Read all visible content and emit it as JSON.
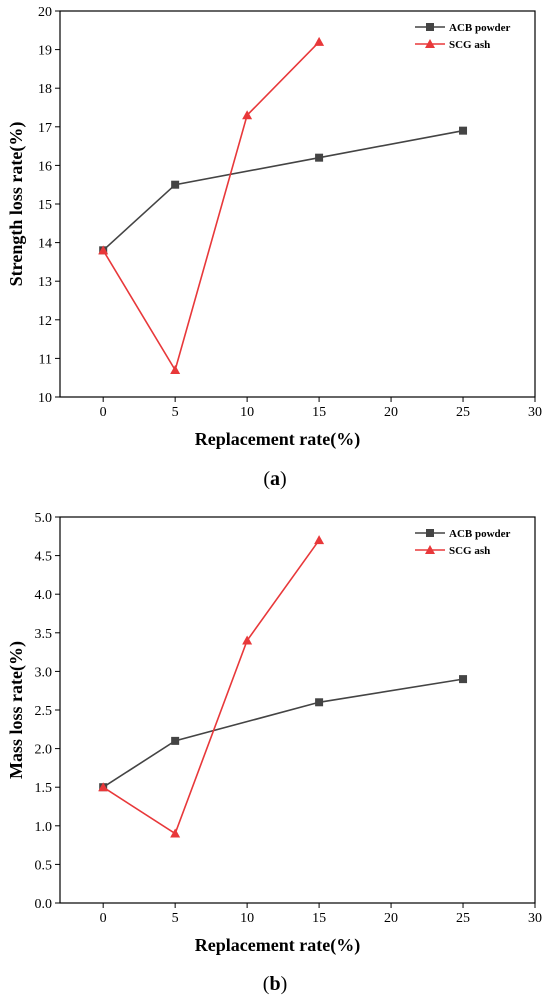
{
  "chart_data": [
    {
      "type": "line",
      "caption_letter": "a",
      "xlabel": "Replacement rate(%)",
      "ylabel": "Strength loss rate(%)",
      "xlim": [
        -3,
        30
      ],
      "ylim": [
        10,
        20
      ],
      "xticks": [
        0,
        5,
        10,
        15,
        20,
        25,
        30
      ],
      "yticks": [
        10,
        11,
        12,
        13,
        14,
        15,
        16,
        17,
        18,
        19,
        20
      ],
      "ytick_labels": [
        "10",
        "11",
        "12",
        "13",
        "14",
        "15",
        "16",
        "17",
        "18",
        "19",
        "20"
      ],
      "legend_position": "top-right",
      "series": [
        {
          "name": "ACB powder",
          "color": "#444444",
          "marker": "square",
          "x": [
            0,
            5,
            15,
            25
          ],
          "y": [
            13.8,
            15.5,
            16.2,
            16.9
          ]
        },
        {
          "name": "SCG ash",
          "color": "#e8383a",
          "marker": "triangle",
          "x": [
            0,
            5,
            10,
            15
          ],
          "y": [
            13.8,
            10.7,
            17.3,
            19.2
          ]
        }
      ]
    },
    {
      "type": "line",
      "caption_letter": "b",
      "xlabel": "Replacement rate(%)",
      "ylabel": "Mass loss rate(%)",
      "xlim": [
        -3,
        30
      ],
      "ylim": [
        0,
        5
      ],
      "xticks": [
        0,
        5,
        10,
        15,
        20,
        25,
        30
      ],
      "yticks": [
        0,
        0.5,
        1,
        1.5,
        2,
        2.5,
        3,
        3.5,
        4,
        4.5,
        5
      ],
      "ytick_labels": [
        "0.0",
        "0.5",
        "1.0",
        "1.5",
        "2.0",
        "2.5",
        "3.0",
        "3.5",
        "4.0",
        "4.5",
        "5.0"
      ],
      "legend_position": "top-right",
      "series": [
        {
          "name": "ACB powder",
          "color": "#444444",
          "marker": "square",
          "x": [
            0,
            5,
            15,
            25
          ],
          "y": [
            1.5,
            2.1,
            2.6,
            2.9
          ]
        },
        {
          "name": "SCG ash",
          "color": "#e8383a",
          "marker": "triangle",
          "x": [
            0,
            5,
            10,
            15
          ],
          "y": [
            1.5,
            0.9,
            3.4,
            4.7
          ]
        }
      ]
    }
  ]
}
